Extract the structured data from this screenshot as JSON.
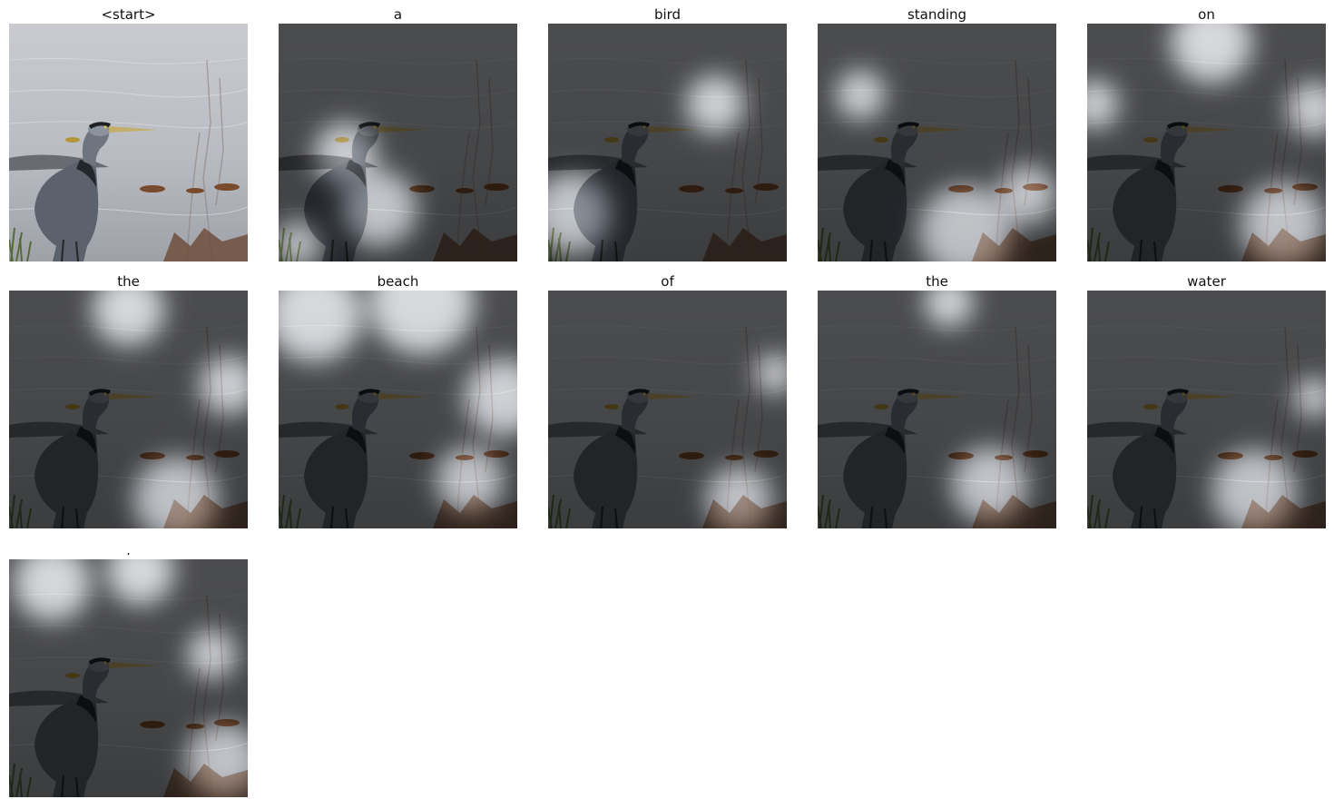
{
  "words": [
    "<start>",
    "a",
    "bird",
    "standing",
    "on",
    "the",
    "beach",
    "of",
    "the",
    "water",
    "."
  ],
  "image_subject": "great-blue-heron-at-waterline",
  "colors": {
    "water": "#c4c6cb",
    "heron_body": "#5b626c",
    "heron_dark": "#23262b",
    "attention_overlay": "#000000",
    "attention_highlight": "#ffffff",
    "leaves": "#7a4a2c"
  },
  "attention_spots": [
    [],
    [
      [
        0.42,
        0.78,
        0.16
      ],
      [
        0.28,
        0.55,
        0.13
      ],
      [
        0.08,
        0.93,
        0.1
      ]
    ],
    [
      [
        0.1,
        0.8,
        0.17
      ],
      [
        0.7,
        0.34,
        0.12
      ]
    ],
    [
      [
        0.62,
        0.88,
        0.2
      ],
      [
        0.18,
        0.3,
        0.1
      ],
      [
        0.88,
        0.72,
        0.12
      ]
    ],
    [
      [
        0.52,
        0.08,
        0.17
      ],
      [
        0.95,
        0.36,
        0.11
      ],
      [
        0.03,
        0.34,
        0.1
      ],
      [
        0.82,
        0.85,
        0.18
      ]
    ],
    [
      [
        0.5,
        0.08,
        0.15
      ],
      [
        0.92,
        0.4,
        0.12
      ],
      [
        0.7,
        0.88,
        0.18
      ]
    ],
    [
      [
        0.15,
        0.1,
        0.2
      ],
      [
        0.6,
        0.05,
        0.22
      ],
      [
        0.94,
        0.45,
        0.16
      ],
      [
        0.8,
        0.8,
        0.14
      ]
    ],
    [
      [
        0.8,
        0.88,
        0.14
      ],
      [
        0.95,
        0.35,
        0.08
      ]
    ],
    [
      [
        0.72,
        0.82,
        0.16
      ],
      [
        0.55,
        0.05,
        0.1
      ]
    ],
    [
      [
        0.7,
        0.85,
        0.18
      ],
      [
        0.95,
        0.45,
        0.08
      ]
    ],
    [
      [
        0.18,
        0.1,
        0.16
      ],
      [
        0.55,
        0.05,
        0.14
      ],
      [
        0.9,
        0.85,
        0.16
      ],
      [
        0.85,
        0.4,
        0.1
      ]
    ]
  ]
}
